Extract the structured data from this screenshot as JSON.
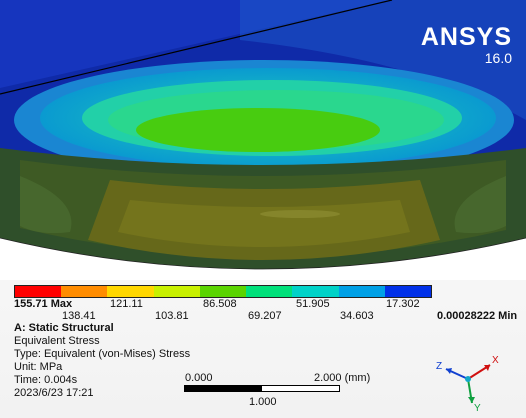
{
  "brand": {
    "name": "ANSYS",
    "version": "16.0"
  },
  "legend": {
    "colors": [
      "#ff0000",
      "#ff8c00",
      "#ffd700",
      "#c8f000",
      "#5ad400",
      "#00e07a",
      "#00d2c8",
      "#00a0e6",
      "#0030e8"
    ],
    "max_label": "155.71 Max",
    "min_label": "0.00028222 Min",
    "upper_ticks": [
      "121.11",
      "86.508",
      "51.905",
      "17.302"
    ],
    "lower_ticks": [
      "138.41",
      "103.81",
      "69.207",
      "34.603"
    ]
  },
  "info": {
    "title": "A: Static Structural",
    "lines": [
      "Equivalent Stress",
      "Type: Equivalent (von-Mises) Stress",
      "Unit: MPa",
      "Time: 0.004s",
      "2023/6/23 17:21"
    ]
  },
  "scale": {
    "left": "0.000",
    "right": "2.000 (mm)",
    "mid": "1.000"
  },
  "triad": {
    "x": "X",
    "y": "Y",
    "z": "Z"
  },
  "colors": {
    "outer_blue": "#1020b0",
    "cyan_ring": "#18b8c8",
    "green_core": "#40cc10",
    "lower_body": "#3a5a2a",
    "lower_olive": "#6a6a10"
  }
}
